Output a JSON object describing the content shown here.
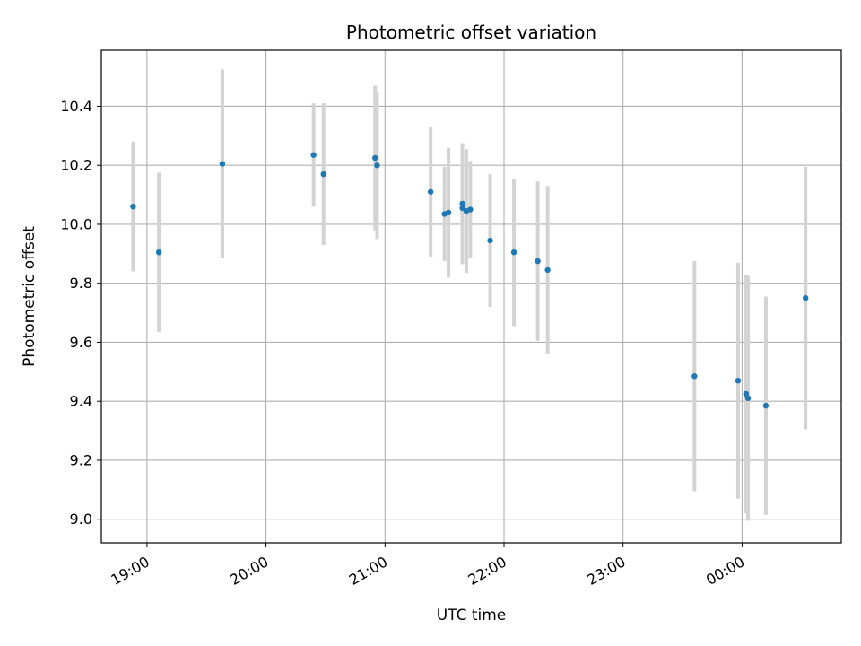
{
  "chart_data": {
    "type": "scatter",
    "title": "Photometric offset variation",
    "xlabel": "UTC time",
    "ylabel": "Photometric offset",
    "x_tick_labels": [
      "19:00",
      "20:00",
      "21:00",
      "22:00",
      "23:00",
      "00:00"
    ],
    "x_ticks": [
      "19:00",
      "20:00",
      "21:00",
      "22:00",
      "23:00",
      "24:00"
    ],
    "y_ticks": [
      9.0,
      9.2,
      9.4,
      9.6,
      9.8,
      10.0,
      10.2,
      10.4
    ],
    "y_tick_labels": [
      "9.0",
      "9.2",
      "9.4",
      "9.6",
      "9.8",
      "10.0",
      "10.2",
      "10.4"
    ],
    "xlim": [
      "18:37",
      "24:50"
    ],
    "ylim": [
      8.92,
      10.59
    ],
    "grid": true,
    "marker_color": "#1f77b4",
    "errorbar_color": "#d3d3d3",
    "points": [
      {
        "x": "18:53",
        "y": 10.06,
        "err": 0.22
      },
      {
        "x": "19:06",
        "y": 9.905,
        "err": 0.27
      },
      {
        "x": "19:38",
        "y": 10.205,
        "err": 0.32
      },
      {
        "x": "20:24",
        "y": 10.235,
        "err": 0.175
      },
      {
        "x": "20:29",
        "y": 10.17,
        "err": 0.24
      },
      {
        "x": "20:55",
        "y": 10.225,
        "err": 0.245
      },
      {
        "x": "20:56",
        "y": 10.2,
        "err": 0.25
      },
      {
        "x": "21:23",
        "y": 10.11,
        "err": 0.22
      },
      {
        "x": "21:30",
        "y": 10.035,
        "err": 0.16
      },
      {
        "x": "21:32",
        "y": 10.04,
        "err": 0.22
      },
      {
        "x": "21:39",
        "y": 10.07,
        "err": 0.205
      },
      {
        "x": "21:39",
        "y": 10.055,
        "err": 0.19
      },
      {
        "x": "21:41",
        "y": 10.045,
        "err": 0.21
      },
      {
        "x": "21:43",
        "y": 10.05,
        "err": 0.165
      },
      {
        "x": "21:53",
        "y": 9.945,
        "err": 0.225
      },
      {
        "x": "22:05",
        "y": 9.905,
        "err": 0.25
      },
      {
        "x": "22:17",
        "y": 9.875,
        "err": 0.27
      },
      {
        "x": "22:22",
        "y": 9.845,
        "err": 0.285
      },
      {
        "x": "23:36",
        "y": 9.485,
        "err": 0.39
      },
      {
        "x": "23:58",
        "y": 9.47,
        "err": 0.4
      },
      {
        "x": "24:02",
        "y": 9.425,
        "err": 0.405
      },
      {
        "x": "24:03",
        "y": 9.41,
        "err": 0.415
      },
      {
        "x": "24:12",
        "y": 9.385,
        "err": 0.37
      },
      {
        "x": "24:32",
        "y": 9.75,
        "err": 0.445
      }
    ]
  }
}
